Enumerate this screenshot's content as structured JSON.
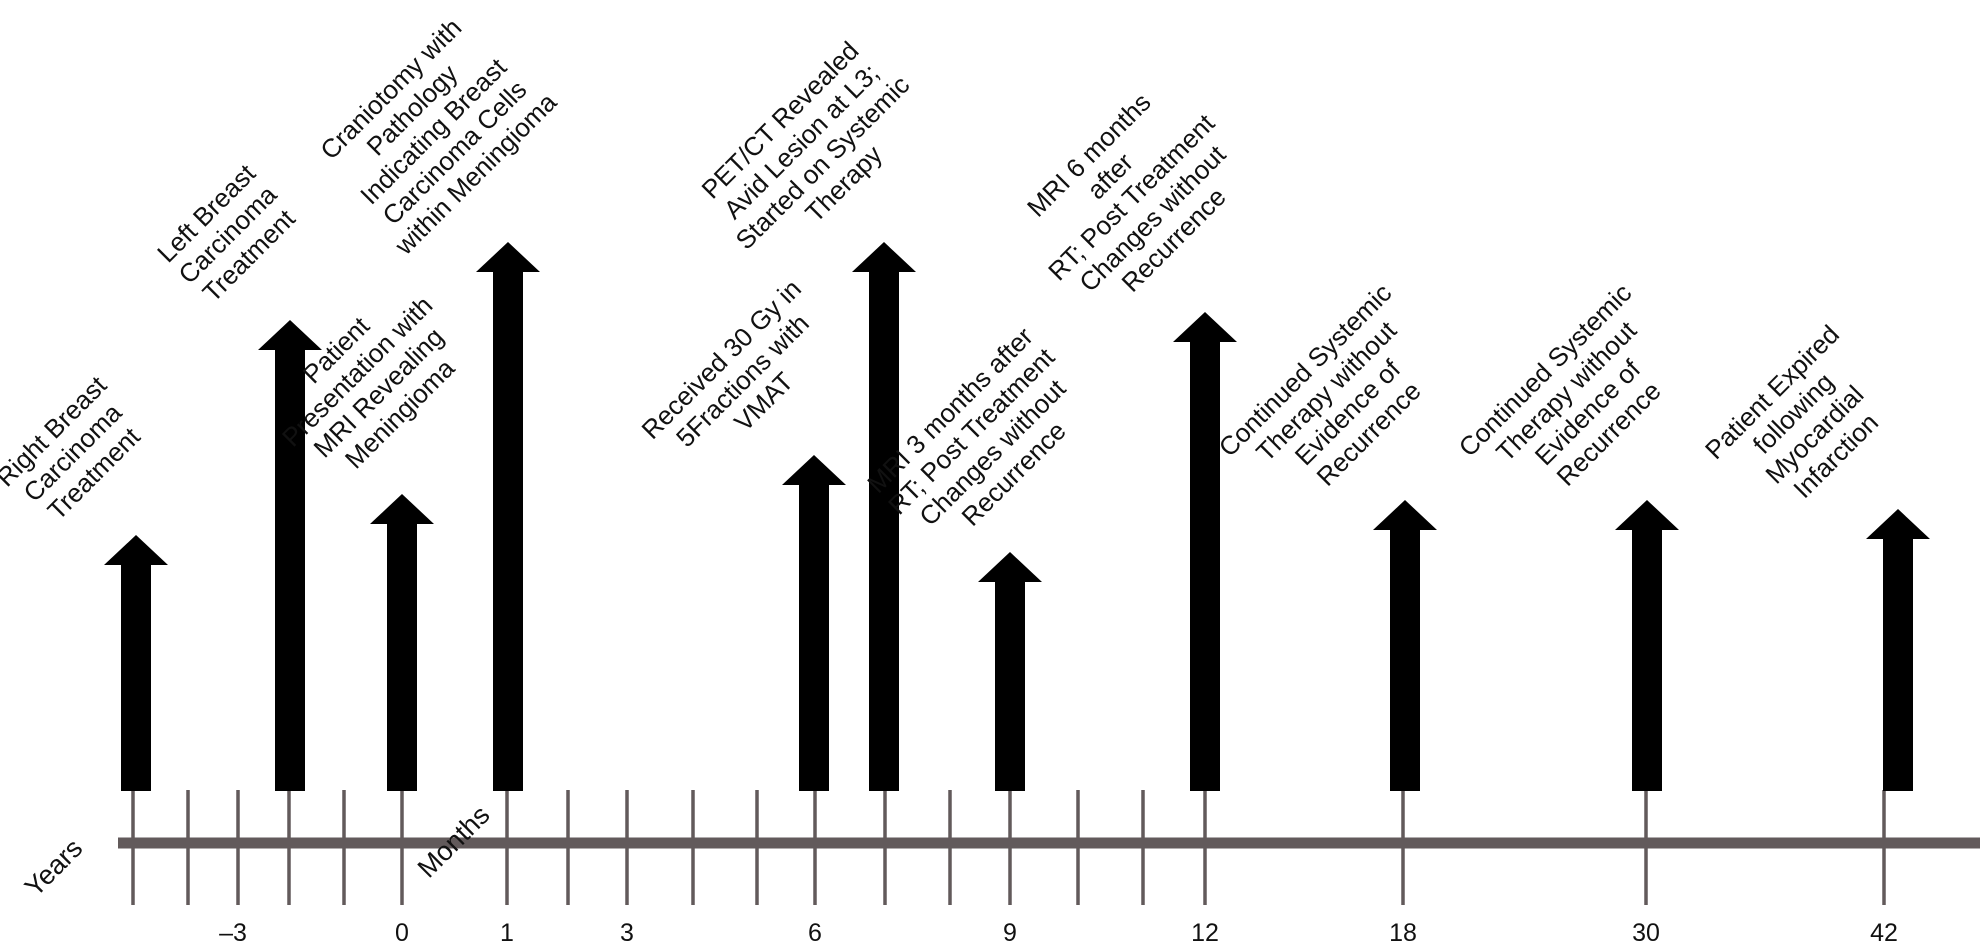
{
  "axis": {
    "years_label": "Years",
    "months_label": "Months",
    "line_color": "#625a5b",
    "arrow_color": "#000000",
    "tick_labels": [
      "–3",
      "0",
      "1",
      "3",
      "6",
      "9",
      "12",
      "18",
      "30",
      "42"
    ]
  },
  "events": [
    {
      "lines": [
        "Right Breast",
        "Carcinoma",
        "Treatment"
      ]
    },
    {
      "lines": [
        "Left Breast",
        "Carcinoma",
        "Treatment"
      ]
    },
    {
      "lines": [
        "Patient",
        "Presentation with",
        "MRI Revealing",
        "Meningioma"
      ]
    },
    {
      "lines": [
        "Craniotomy with",
        "Pathology",
        "Indicating Breast",
        "Carcinoma Cells",
        "within Meningioma"
      ]
    },
    {
      "lines": [
        "Received 30 Gy in",
        "5Fractions with",
        "VMAT"
      ]
    },
    {
      "lines": [
        "PET/CT Revealed",
        "Avid Lesion at L3;",
        "Started on Systemic",
        "Therapy"
      ]
    },
    {
      "lines": [
        "MRI 3 months after",
        "RT; Post Treatment",
        "Changes without",
        "Recurrence"
      ]
    },
    {
      "lines": [
        "MRI 6 months",
        "after",
        "RT; Post Treatment",
        "Changes without",
        "Recurrence"
      ]
    },
    {
      "lines": [
        "Continued Systemic",
        "Therapy without",
        "Evidence of",
        "Recurrence"
      ]
    },
    {
      "lines": [
        "Continued Systemic",
        "Therapy without",
        "Evidence of",
        "Recurrence"
      ]
    },
    {
      "lines": [
        "Patient Expired",
        "following",
        "Myocardial",
        "Infarction"
      ]
    }
  ]
}
